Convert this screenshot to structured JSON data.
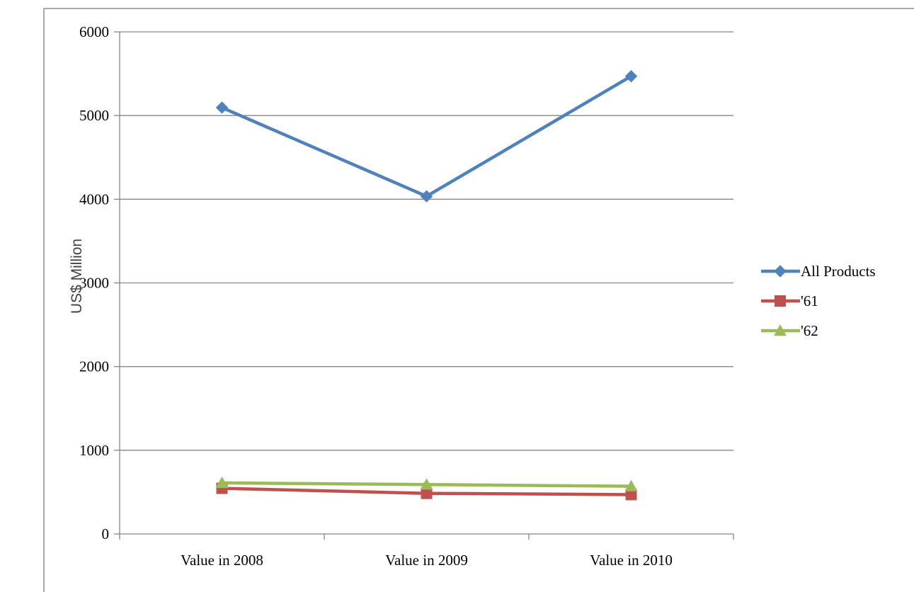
{
  "chart_data": {
    "type": "line",
    "categories": [
      "Value in 2008",
      "Value in 2009",
      "Value in 2010"
    ],
    "series": [
      {
        "name": "All Products",
        "values": [
          5095,
          4035,
          5470
        ],
        "color": "#4f81bd",
        "marker": "diamond"
      },
      {
        "name": "'61",
        "values": [
          545,
          485,
          470
        ],
        "color": "#c0504d",
        "marker": "square"
      },
      {
        "name": "'62",
        "values": [
          610,
          590,
          570
        ],
        "color": "#9bbb59",
        "marker": "triangle"
      }
    ],
    "ylabel": "US$ Million",
    "ylim": [
      0,
      6000
    ],
    "yticks": [
      0,
      1000,
      2000,
      3000,
      4000,
      5000,
      6000
    ],
    "grid": true,
    "legend": "right"
  }
}
